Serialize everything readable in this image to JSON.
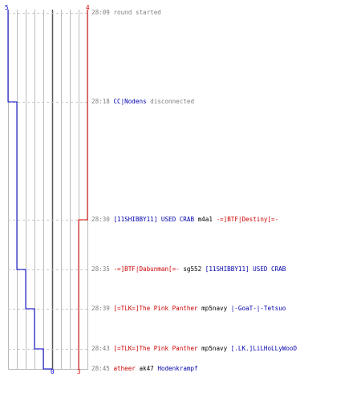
{
  "scores": {
    "blue_start": "5",
    "red_start": "4",
    "blue_end": "0",
    "red_end": "3"
  },
  "colors": {
    "blue_team": "#0000cc",
    "red_team": "#dd0000",
    "grid": "#bbbbbb",
    "dash": "#c8c8c8",
    "zero_line": "#555555"
  },
  "events": [
    {
      "time": "28:09",
      "parts": [
        {
          "text": "round started",
          "color": "gray"
        }
      ]
    },
    {
      "time": "28:18",
      "parts": [
        {
          "text": "CC|Nodens",
          "color": "blue"
        },
        {
          "text": "disconnected",
          "color": "gray"
        }
      ]
    },
    {
      "time": "28:30",
      "parts": [
        {
          "text": "[11SHIBBY11] USED CRAB",
          "color": "blue"
        },
        {
          "text": "m4a1",
          "color": "black"
        },
        {
          "text": "-=]BTF|Destiny[=-",
          "color": "red"
        }
      ]
    },
    {
      "time": "28:35",
      "parts": [
        {
          "text": "-=]BTF|Dabunman[=-",
          "color": "red"
        },
        {
          "text": "sg552",
          "color": "black"
        },
        {
          "text": "[11SHIBBY11] USED CRAB",
          "color": "blue"
        }
      ]
    },
    {
      "time": "28:39",
      "parts": [
        {
          "text": "[=TLK=]The Pink Panther",
          "color": "red"
        },
        {
          "text": "mp5navy",
          "color": "black"
        },
        {
          "text": "|-GoaT-|-Tetsuo",
          "color": "blue"
        }
      ]
    },
    {
      "time": "28:43",
      "parts": [
        {
          "text": "[=TLK=]The Pink Panther",
          "color": "red"
        },
        {
          "text": "mp5navy",
          "color": "black"
        },
        {
          "text": "[.LK.]LiLHoLLyWooD",
          "color": "blue"
        }
      ]
    },
    {
      "time": "28:45",
      "parts": [
        {
          "text": "atheer",
          "color": "red"
        },
        {
          "text": "ak47",
          "color": "black"
        },
        {
          "text": "Hodenkrampf",
          "color": "blue"
        }
      ]
    }
  ]
}
